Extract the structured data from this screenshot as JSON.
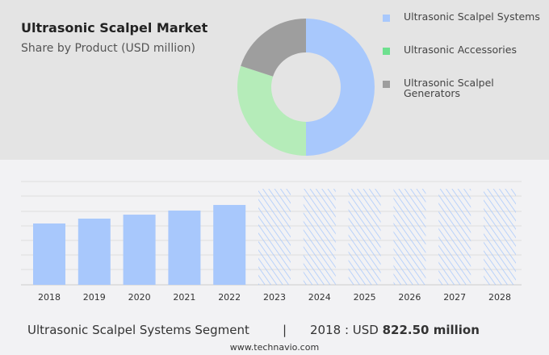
{
  "title": "Ultrasonic Scalpel Market",
  "subtitle": "Share by Product (USD million)",
  "chart_data": [
    {
      "type": "pie",
      "donut": true,
      "categories": [
        "Ultrasonic Scalpel Systems",
        "Ultrasonic Accessories",
        "Ultrasonic Scalpel Generators"
      ],
      "values": [
        50,
        30,
        20
      ],
      "colors": [
        "#a8c8fc",
        "#b5ecb9",
        "#9e9e9e"
      ],
      "legend_colors": [
        "#a8c8fc",
        "#6ee08f",
        "#9e9e9e"
      ],
      "legend": "right"
    },
    {
      "type": "bar",
      "categories": [
        "2018",
        "2019",
        "2020",
        "2021",
        "2022",
        "2023",
        "2024",
        "2025",
        "2026",
        "2027",
        "2028"
      ],
      "values": [
        822.5,
        888,
        941,
        996,
        1071,
        null,
        null,
        null,
        null,
        null,
        null
      ],
      "forecast": [
        "2023",
        "2024",
        "2025",
        "2026",
        "2027",
        "2028"
      ],
      "color": "#a8c8fc",
      "grid": true
    }
  ],
  "footer": {
    "segment": "Ultrasonic Scalpel Systems Segment",
    "separator": "|",
    "year_label": "2018 : USD",
    "value": "822.50 million",
    "site": "www.technavio.com"
  }
}
